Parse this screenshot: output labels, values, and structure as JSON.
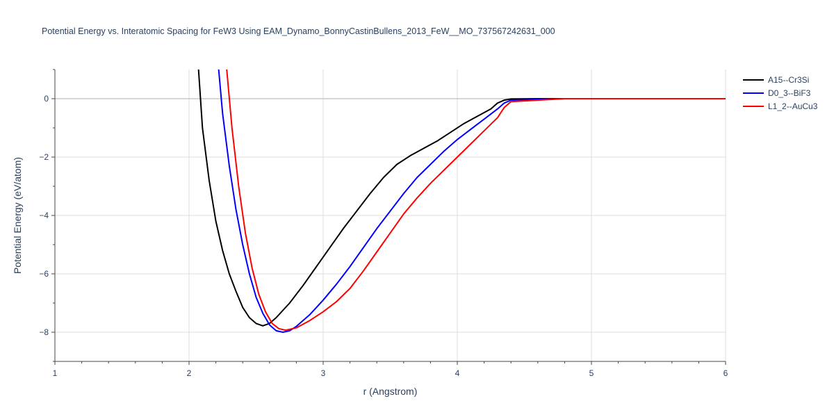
{
  "chart_data": {
    "type": "line",
    "title": "Potential Energy vs. Interatomic Spacing for FeW3 Using EAM_Dynamo_BonnyCastinBullens_2013_FeW__MO_737567242631_000",
    "xlabel": "r (Angstrom)",
    "ylabel": "Potential Energy (eV/atom)",
    "xlim": [
      1,
      6
    ],
    "ylim": [
      -9,
      1
    ],
    "x_ticks": [
      1,
      2,
      3,
      4,
      5,
      6
    ],
    "y_ticks": [
      0,
      -2,
      -4,
      -6,
      -8
    ],
    "y_tick_labels": [
      "0",
      "−2",
      "−4",
      "−6",
      "−8"
    ],
    "grid": true,
    "legend_position": "top-right",
    "series": [
      {
        "name": "A15--Cr3Si",
        "color": "#000000",
        "points": [
          [
            2.07,
            1.05
          ],
          [
            2.1,
            -1.0
          ],
          [
            2.15,
            -2.8
          ],
          [
            2.2,
            -4.2
          ],
          [
            2.25,
            -5.2
          ],
          [
            2.3,
            -6.0
          ],
          [
            2.35,
            -6.6
          ],
          [
            2.4,
            -7.15
          ],
          [
            2.45,
            -7.5
          ],
          [
            2.5,
            -7.7
          ],
          [
            2.55,
            -7.78
          ],
          [
            2.6,
            -7.7
          ],
          [
            2.65,
            -7.5
          ],
          [
            2.75,
            -7.0
          ],
          [
            2.85,
            -6.4
          ],
          [
            2.95,
            -5.75
          ],
          [
            3.05,
            -5.1
          ],
          [
            3.15,
            -4.45
          ],
          [
            3.25,
            -3.85
          ],
          [
            3.35,
            -3.25
          ],
          [
            3.45,
            -2.7
          ],
          [
            3.55,
            -2.25
          ],
          [
            3.65,
            -1.95
          ],
          [
            3.75,
            -1.7
          ],
          [
            3.85,
            -1.45
          ],
          [
            3.95,
            -1.15
          ],
          [
            4.05,
            -0.85
          ],
          [
            4.15,
            -0.6
          ],
          [
            4.25,
            -0.35
          ],
          [
            4.3,
            -0.15
          ],
          [
            4.35,
            -0.05
          ],
          [
            4.4,
            -0.01
          ],
          [
            4.6,
            0.0
          ],
          [
            6.0,
            0.0
          ]
        ]
      },
      {
        "name": "D0_3--BiF3",
        "color": "#0000ff",
        "points": [
          [
            2.22,
            1.05
          ],
          [
            2.25,
            -0.5
          ],
          [
            2.3,
            -2.3
          ],
          [
            2.35,
            -3.8
          ],
          [
            2.4,
            -5.0
          ],
          [
            2.45,
            -6.0
          ],
          [
            2.5,
            -6.8
          ],
          [
            2.55,
            -7.35
          ],
          [
            2.6,
            -7.75
          ],
          [
            2.65,
            -7.95
          ],
          [
            2.7,
            -8.0
          ],
          [
            2.75,
            -7.95
          ],
          [
            2.8,
            -7.8
          ],
          [
            2.9,
            -7.4
          ],
          [
            3.0,
            -6.9
          ],
          [
            3.1,
            -6.35
          ],
          [
            3.2,
            -5.75
          ],
          [
            3.3,
            -5.1
          ],
          [
            3.4,
            -4.45
          ],
          [
            3.5,
            -3.85
          ],
          [
            3.6,
            -3.25
          ],
          [
            3.7,
            -2.7
          ],
          [
            3.8,
            -2.25
          ],
          [
            3.9,
            -1.8
          ],
          [
            4.0,
            -1.4
          ],
          [
            4.1,
            -1.05
          ],
          [
            4.2,
            -0.7
          ],
          [
            4.3,
            -0.35
          ],
          [
            4.35,
            -0.15
          ],
          [
            4.4,
            -0.05
          ],
          [
            4.6,
            -0.02
          ],
          [
            4.8,
            0.0
          ],
          [
            6.0,
            0.0
          ]
        ]
      },
      {
        "name": "L1_2--AuCu3",
        "color": "#ff0000",
        "points": [
          [
            2.28,
            1.05
          ],
          [
            2.32,
            -1.0
          ],
          [
            2.37,
            -3.0
          ],
          [
            2.42,
            -4.6
          ],
          [
            2.47,
            -5.8
          ],
          [
            2.52,
            -6.7
          ],
          [
            2.57,
            -7.3
          ],
          [
            2.62,
            -7.7
          ],
          [
            2.67,
            -7.88
          ],
          [
            2.72,
            -7.93
          ],
          [
            2.8,
            -7.85
          ],
          [
            2.9,
            -7.6
          ],
          [
            3.0,
            -7.3
          ],
          [
            3.1,
            -6.95
          ],
          [
            3.2,
            -6.5
          ],
          [
            3.3,
            -5.9
          ],
          [
            3.4,
            -5.25
          ],
          [
            3.5,
            -4.6
          ],
          [
            3.6,
            -3.95
          ],
          [
            3.7,
            -3.4
          ],
          [
            3.8,
            -2.9
          ],
          [
            3.9,
            -2.45
          ],
          [
            4.0,
            -2.0
          ],
          [
            4.1,
            -1.55
          ],
          [
            4.2,
            -1.1
          ],
          [
            4.3,
            -0.65
          ],
          [
            4.35,
            -0.3
          ],
          [
            4.4,
            -0.1
          ],
          [
            4.6,
            -0.05
          ],
          [
            4.8,
            0.0
          ],
          [
            6.0,
            0.0
          ]
        ]
      }
    ]
  }
}
